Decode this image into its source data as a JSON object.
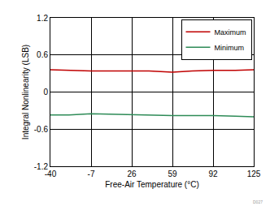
{
  "chart_data": {
    "type": "line",
    "x_label": "Free-Air Temperature (°C)",
    "y_label": "Integral Nonlinearity (LSB)",
    "x": [
      -40,
      -25,
      -7,
      10,
      26,
      40,
      59,
      75,
      92,
      110,
      125
    ],
    "series": [
      {
        "name": "Maximum",
        "color": "#c00000",
        "values": [
          0.36,
          0.35,
          0.34,
          0.34,
          0.34,
          0.34,
          0.32,
          0.34,
          0.35,
          0.35,
          0.36
        ]
      },
      {
        "name": "Minimum",
        "color": "#2e8b57",
        "values": [
          -0.37,
          -0.37,
          -0.35,
          -0.36,
          -0.36,
          -0.37,
          -0.38,
          -0.38,
          -0.38,
          -0.39,
          -0.4
        ]
      }
    ],
    "xlim": [
      -40,
      125
    ],
    "xticks": [
      -40,
      -7,
      26,
      59,
      92,
      125
    ],
    "ylim": [
      -1.2,
      1.2
    ],
    "yticks": [
      -1.2,
      -0.6,
      0,
      0.6,
      1.2
    ],
    "grid": true,
    "legend": "top right",
    "annotations": [
      {
        "text": "D027"
      }
    ]
  }
}
